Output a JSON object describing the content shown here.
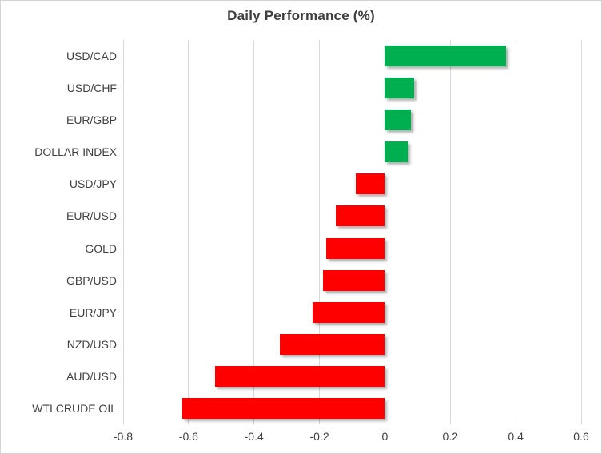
{
  "chart_data": {
    "type": "bar",
    "orientation": "horizontal",
    "title": "Daily Performance (%)",
    "categories": [
      "USD/CAD",
      "USD/CHF",
      "EUR/GBP",
      "DOLLAR INDEX",
      "USD/JPY",
      "EUR/USD",
      "GOLD",
      "GBP/USD",
      "EUR/JPY",
      "NZD/USD",
      "AUD/USD",
      "WTI CRUDE OIL"
    ],
    "values": [
      0.37,
      0.09,
      0.08,
      0.07,
      -0.09,
      -0.15,
      -0.18,
      -0.19,
      -0.22,
      -0.32,
      -0.52,
      -0.62
    ],
    "xlim": [
      -0.8,
      0.6
    ],
    "x_ticks": [
      -0.8,
      -0.6,
      -0.4,
      -0.2,
      0,
      0.2,
      0.4,
      0.6
    ],
    "x_tick_labels": [
      "-0.8",
      "-0.6",
      "-0.4",
      "-0.2",
      "0",
      "0.2",
      "0.4",
      "0.6"
    ],
    "grid": "vertical-gridlines-on",
    "legend": "none",
    "colors": {
      "positive": "#00B050",
      "negative": "#FF0000",
      "gridline": "#D9D9D9",
      "text": "#404040",
      "title": "#3F3F3F",
      "border": "#D2D2D2",
      "background": "#FFFFFF"
    }
  }
}
